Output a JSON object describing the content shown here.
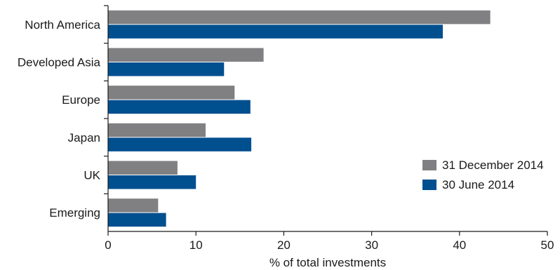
{
  "chart_data": {
    "type": "bar",
    "orientation": "horizontal",
    "categories": [
      "North America",
      "Developed Asia",
      "Europe",
      "Japan",
      "UK",
      "Emerging"
    ],
    "series": [
      {
        "name": "31 December 2014",
        "color": "#808083",
        "values": [
          43.5,
          17.7,
          14.4,
          11.1,
          7.9,
          5.7
        ]
      },
      {
        "name": "30 June 2014",
        "color": "#004f8f",
        "values": [
          38.1,
          13.2,
          16.2,
          16.3,
          10.0,
          6.6
        ]
      }
    ],
    "xlabel": "% of total investments",
    "xlim": [
      0,
      50
    ],
    "xticks": [
      0,
      10,
      20,
      30,
      40,
      50
    ],
    "grid": false,
    "legend_position": "right"
  }
}
